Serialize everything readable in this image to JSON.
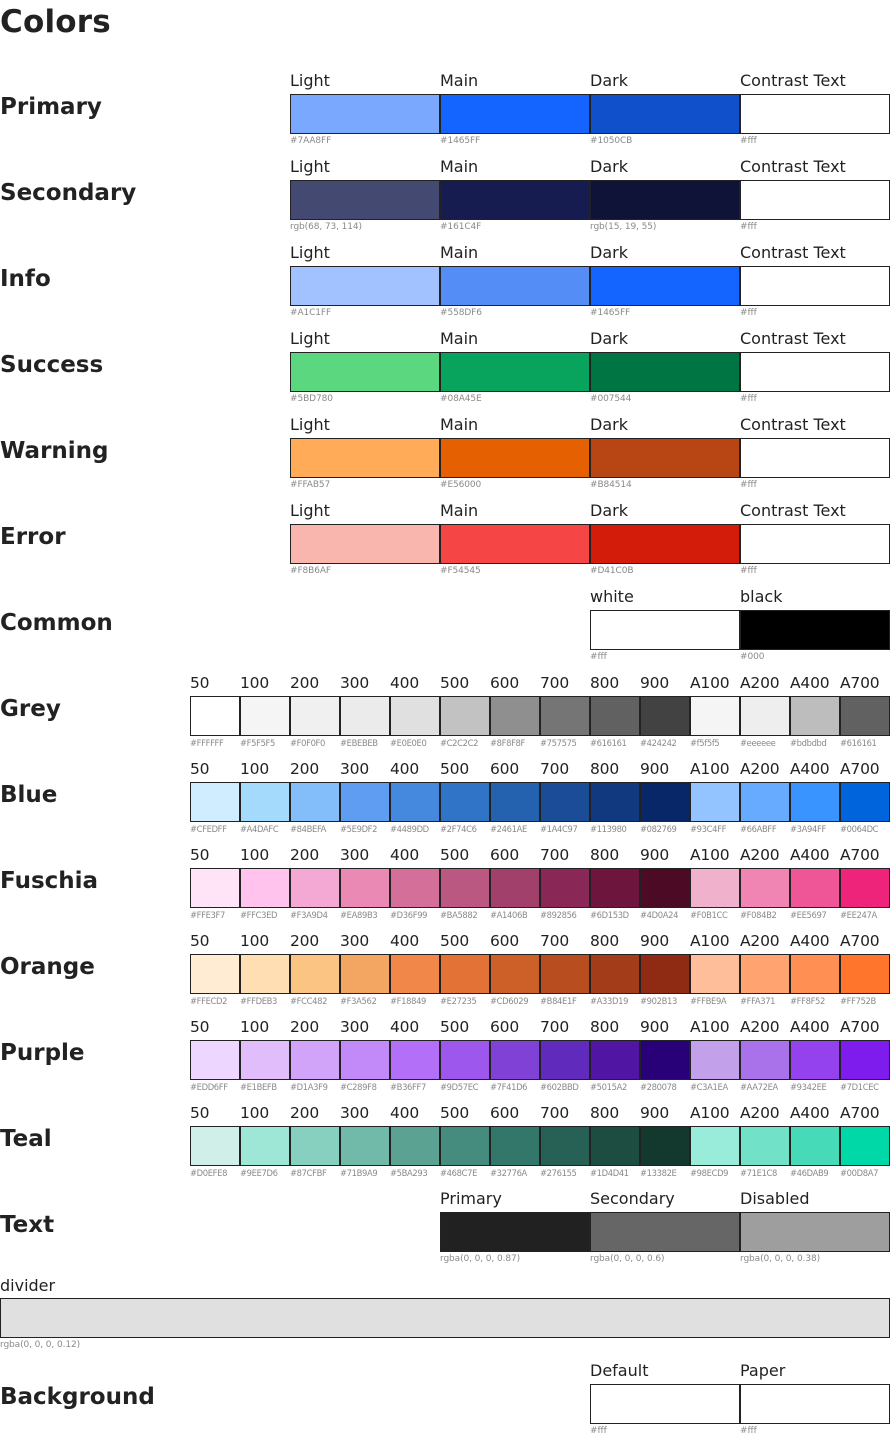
{
  "title": "Colors",
  "palette": [
    {
      "name": "Primary",
      "columns": [
        {
          "label": "Light",
          "color": "#7AA8FF",
          "code": "#7AA8FF"
        },
        {
          "label": "Main",
          "color": "#1465FF",
          "code": "#1465FF"
        },
        {
          "label": "Dark",
          "color": "#1050CB",
          "code": "#1050CB"
        },
        {
          "label": "Contrast Text",
          "color": "#ffffff",
          "code": "#fff"
        }
      ]
    },
    {
      "name": "Secondary",
      "columns": [
        {
          "label": "Light",
          "color": "rgb(68, 73, 114)",
          "code": "rgb(68, 73, 114)"
        },
        {
          "label": "Main",
          "color": "#161C4F",
          "code": "#161C4F"
        },
        {
          "label": "Dark",
          "color": "rgb(15, 19, 55)",
          "code": "rgb(15, 19, 55)"
        },
        {
          "label": "Contrast Text",
          "color": "#ffffff",
          "code": "#fff"
        }
      ]
    },
    {
      "name": "Info",
      "columns": [
        {
          "label": "Light",
          "color": "#A1C1FF",
          "code": "#A1C1FF"
        },
        {
          "label": "Main",
          "color": "#558DF6",
          "code": "#558DF6"
        },
        {
          "label": "Dark",
          "color": "#1465FF",
          "code": "#1465FF"
        },
        {
          "label": "Contrast Text",
          "color": "#ffffff",
          "code": "#fff"
        }
      ]
    },
    {
      "name": "Success",
      "columns": [
        {
          "label": "Light",
          "color": "#5BD780",
          "code": "#5BD780"
        },
        {
          "label": "Main",
          "color": "#08A45E",
          "code": "#08A45E"
        },
        {
          "label": "Dark",
          "color": "#007544",
          "code": "#007544"
        },
        {
          "label": "Contrast Text",
          "color": "#ffffff",
          "code": "#fff"
        }
      ]
    },
    {
      "name": "Warning",
      "columns": [
        {
          "label": "Light",
          "color": "#FFAB57",
          "code": "#FFAB57"
        },
        {
          "label": "Main",
          "color": "#E56000",
          "code": "#E56000"
        },
        {
          "label": "Dark",
          "color": "#B84514",
          "code": "#B84514"
        },
        {
          "label": "Contrast Text",
          "color": "#ffffff",
          "code": "#fff"
        }
      ]
    },
    {
      "name": "Error",
      "columns": [
        {
          "label": "Light",
          "color": "#F8B6AF",
          "code": "#F8B6AF"
        },
        {
          "label": "Main",
          "color": "#F54545",
          "code": "#F54545"
        },
        {
          "label": "Dark",
          "color": "#D41C0B",
          "code": "#D41C0B"
        },
        {
          "label": "Contrast Text",
          "color": "#ffffff",
          "code": "#fff"
        }
      ]
    },
    {
      "name": "Common",
      "columns": [
        {
          "label": "white",
          "color": "#ffffff",
          "code": "#fff"
        },
        {
          "label": "black",
          "color": "#000000",
          "code": "#000"
        }
      ]
    },
    {
      "name": "Grey",
      "columns": [
        {
          "label": "50",
          "color": "#FFFFFF",
          "code": "#FFFFFF"
        },
        {
          "label": "100",
          "color": "#F5F5F5",
          "code": "#F5F5F5"
        },
        {
          "label": "200",
          "color": "#F0F0F0",
          "code": "#F0F0F0"
        },
        {
          "label": "300",
          "color": "#EBEBEB",
          "code": "#EBEBEB"
        },
        {
          "label": "400",
          "color": "#E0E0E0",
          "code": "#E0E0E0"
        },
        {
          "label": "500",
          "color": "#C2C2C2",
          "code": "#C2C2C2"
        },
        {
          "label": "600",
          "color": "#8F8F8F",
          "code": "#8F8F8F"
        },
        {
          "label": "700",
          "color": "#757575",
          "code": "#757575"
        },
        {
          "label": "800",
          "color": "#616161",
          "code": "#616161"
        },
        {
          "label": "900",
          "color": "#424242",
          "code": "#424242"
        },
        {
          "label": "A100",
          "color": "#f5f5f5",
          "code": "#f5f5f5"
        },
        {
          "label": "A200",
          "color": "#eeeeee",
          "code": "#eeeeee"
        },
        {
          "label": "A400",
          "color": "#bdbdbd",
          "code": "#bdbdbd"
        },
        {
          "label": "A700",
          "color": "#616161",
          "code": "#616161"
        }
      ]
    },
    {
      "name": "Blue",
      "columns": [
        {
          "label": "50",
          "color": "#CFEDFF",
          "code": "#CFEDFF"
        },
        {
          "label": "100",
          "color": "#A4DAFC",
          "code": "#A4DAFC"
        },
        {
          "label": "200",
          "color": "#84BEFA",
          "code": "#84BEFA"
        },
        {
          "label": "300",
          "color": "#5E9DF2",
          "code": "#5E9DF2"
        },
        {
          "label": "400",
          "color": "#4489DD",
          "code": "#4489DD"
        },
        {
          "label": "500",
          "color": "#2F74C6",
          "code": "#2F74C6"
        },
        {
          "label": "600",
          "color": "#2461AE",
          "code": "#2461AE"
        },
        {
          "label": "700",
          "color": "#1A4C97",
          "code": "#1A4C97"
        },
        {
          "label": "800",
          "color": "#113980",
          "code": "#113980"
        },
        {
          "label": "900",
          "color": "#082769",
          "code": "#082769"
        },
        {
          "label": "A100",
          "color": "#93C4FF",
          "code": "#93C4FF"
        },
        {
          "label": "A200",
          "color": "#66ABFF",
          "code": "#66ABFF"
        },
        {
          "label": "A400",
          "color": "#3A94FF",
          "code": "#3A94FF"
        },
        {
          "label": "A700",
          "color": "#0064DC",
          "code": "#0064DC"
        }
      ]
    },
    {
      "name": "Fuschia",
      "columns": [
        {
          "label": "50",
          "color": "#FFE3F7",
          "code": "#FFE3F7"
        },
        {
          "label": "100",
          "color": "#FFC3ED",
          "code": "#FFC3ED"
        },
        {
          "label": "200",
          "color": "#F3A9D4",
          "code": "#F3A9D4"
        },
        {
          "label": "300",
          "color": "#EA89B3",
          "code": "#EA89B3"
        },
        {
          "label": "400",
          "color": "#D36F99",
          "code": "#D36F99"
        },
        {
          "label": "500",
          "color": "#BA5882",
          "code": "#BA5882"
        },
        {
          "label": "600",
          "color": "#A1406B",
          "code": "#A1406B"
        },
        {
          "label": "700",
          "color": "#892856",
          "code": "#892856"
        },
        {
          "label": "800",
          "color": "#6D153D",
          "code": "#6D153D"
        },
        {
          "label": "900",
          "color": "#4D0A24",
          "code": "#4D0A24"
        },
        {
          "label": "A100",
          "color": "#F0B1CC",
          "code": "#F0B1CC"
        },
        {
          "label": "A200",
          "color": "#F084B2",
          "code": "#F084B2"
        },
        {
          "label": "A400",
          "color": "#EE5697",
          "code": "#EE5697"
        },
        {
          "label": "A700",
          "color": "#EE247A",
          "code": "#EE247A"
        }
      ]
    },
    {
      "name": "Orange",
      "columns": [
        {
          "label": "50",
          "color": "#FFECD2",
          "code": "#FFECD2"
        },
        {
          "label": "100",
          "color": "#FFDEB3",
          "code": "#FFDEB3"
        },
        {
          "label": "200",
          "color": "#FCC482",
          "code": "#FCC482"
        },
        {
          "label": "300",
          "color": "#F3A562",
          "code": "#F3A562"
        },
        {
          "label": "400",
          "color": "#F18849",
          "code": "#F18849"
        },
        {
          "label": "500",
          "color": "#E27235",
          "code": "#E27235"
        },
        {
          "label": "600",
          "color": "#CD6029",
          "code": "#CD6029"
        },
        {
          "label": "700",
          "color": "#B84E1F",
          "code": "#B84E1F"
        },
        {
          "label": "800",
          "color": "#A33D19",
          "code": "#A33D19"
        },
        {
          "label": "900",
          "color": "#902B13",
          "code": "#902B13"
        },
        {
          "label": "A100",
          "color": "#FFBE9A",
          "code": "#FFBE9A"
        },
        {
          "label": "A200",
          "color": "#FFA371",
          "code": "#FFA371"
        },
        {
          "label": "A400",
          "color": "#FF8F52",
          "code": "#FF8F52"
        },
        {
          "label": "A700",
          "color": "#FF752B",
          "code": "#FF752B"
        }
      ]
    },
    {
      "name": "Purple",
      "columns": [
        {
          "label": "50",
          "color": "#EDD6FF",
          "code": "#EDD6FF"
        },
        {
          "label": "100",
          "color": "#E1BEFB",
          "code": "#E1BEFB"
        },
        {
          "label": "200",
          "color": "#D1A3F9",
          "code": "#D1A3F9"
        },
        {
          "label": "300",
          "color": "#C289F8",
          "code": "#C289F8"
        },
        {
          "label": "400",
          "color": "#B36FF7",
          "code": "#B36FF7"
        },
        {
          "label": "500",
          "color": "#9D57EC",
          "code": "#9D57EC"
        },
        {
          "label": "600",
          "color": "#7F41D6",
          "code": "#7F41D6"
        },
        {
          "label": "700",
          "color": "#602BBD",
          "code": "#602BBD"
        },
        {
          "label": "800",
          "color": "#5015A2",
          "code": "#5015A2"
        },
        {
          "label": "900",
          "color": "#280078",
          "code": "#280078"
        },
        {
          "label": "A100",
          "color": "#C3A1EA",
          "code": "#C3A1EA"
        },
        {
          "label": "A200",
          "color": "#AA72EA",
          "code": "#AA72EA"
        },
        {
          "label": "A400",
          "color": "#9342EE",
          "code": "#9342EE"
        },
        {
          "label": "A700",
          "color": "#7D1CEC",
          "code": "#7D1CEC"
        }
      ]
    },
    {
      "name": "Teal",
      "columns": [
        {
          "label": "50",
          "color": "#D0EFE8",
          "code": "#D0EFE8"
        },
        {
          "label": "100",
          "color": "#9EE7D6",
          "code": "#9EE7D6"
        },
        {
          "label": "200",
          "color": "#87CFBF",
          "code": "#87CFBF"
        },
        {
          "label": "300",
          "color": "#71B9A9",
          "code": "#71B9A9"
        },
        {
          "label": "400",
          "color": "#5BA293",
          "code": "#5BA293"
        },
        {
          "label": "500",
          "color": "#468C7E",
          "code": "#468C7E"
        },
        {
          "label": "600",
          "color": "#32776A",
          "code": "#32776A"
        },
        {
          "label": "700",
          "color": "#276155",
          "code": "#276155"
        },
        {
          "label": "800",
          "color": "#1D4D41",
          "code": "#1D4D41"
        },
        {
          "label": "900",
          "color": "#13382E",
          "code": "#13382E"
        },
        {
          "label": "A100",
          "color": "#98ECD9",
          "code": "#98ECD9"
        },
        {
          "label": "A200",
          "color": "#71E1C8",
          "code": "#71E1C8"
        },
        {
          "label": "A400",
          "color": "#46DAB9",
          "code": "#46DAB9"
        },
        {
          "label": "A700",
          "color": "#00D8A7",
          "code": "#00D8A7"
        }
      ]
    },
    {
      "name": "Text",
      "columns": [
        {
          "label": "Primary",
          "color": "rgba(0, 0, 0, 0.87)",
          "code": "rgba(0, 0, 0, 0.87)"
        },
        {
          "label": "Secondary",
          "color": "rgba(0, 0, 0, 0.6)",
          "code": "rgba(0, 0, 0, 0.6)"
        },
        {
          "label": "Disabled",
          "color": "rgba(0, 0, 0, 0.38)",
          "code": "rgba(0, 0, 0, 0.38)"
        }
      ]
    }
  ],
  "divider": {
    "label": "divider",
    "color": "rgba(0, 0, 0, 0.12)",
    "code": "rgba(0, 0, 0, 0.12)"
  },
  "background": {
    "name": "Background",
    "columns": [
      {
        "label": "Default",
        "color": "#ffffff",
        "code": "#fff"
      },
      {
        "label": "Paper",
        "color": "#ffffff",
        "code": "#fff"
      }
    ]
  }
}
